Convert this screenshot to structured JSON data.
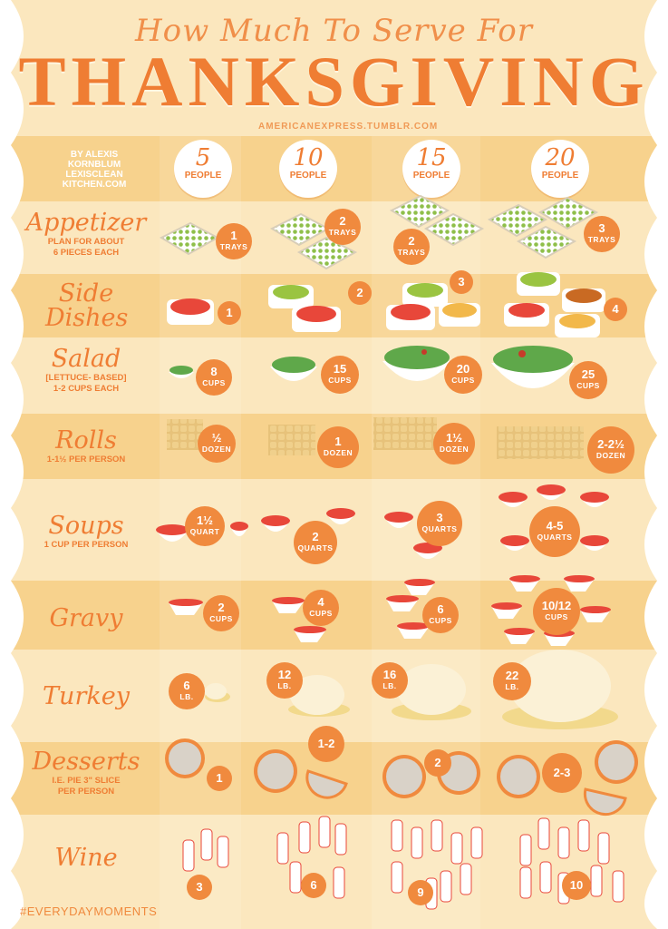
{
  "title_script": "How Much To Serve For",
  "title_main": "THANKSGIVING",
  "site": "AMERICANEXPRESS.TUMBLR.COM",
  "byline": [
    "BY ALEXIS",
    "KORNBLUM",
    "LEXISCLEAN",
    "KITCHEN.COM"
  ],
  "columns": [
    {
      "num": "5",
      "label": "PEOPLE"
    },
    {
      "num": "10",
      "label": "PEOPLE"
    },
    {
      "num": "15",
      "label": "PEOPLE"
    },
    {
      "num": "20",
      "label": "PEOPLE"
    }
  ],
  "rows": [
    {
      "name": "Appetizer",
      "note": [
        "PLAN FOR ABOUT",
        "6 PIECES EACH"
      ],
      "amounts": [
        {
          "q": "1",
          "u": "TRAYS"
        },
        {
          "q": "2",
          "u": "TRAYS"
        },
        {
          "q": "2",
          "u": "TRAYS"
        },
        {
          "q": "3",
          "u": "TRAYS"
        }
      ]
    },
    {
      "name": "Side Dishes",
      "note": [],
      "amounts": [
        {
          "q": "1",
          "u": ""
        },
        {
          "q": "2",
          "u": ""
        },
        {
          "q": "3",
          "u": ""
        },
        {
          "q": "4",
          "u": ""
        }
      ]
    },
    {
      "name": "Salad",
      "note": [
        "[LETTUCE- BASED]",
        "1-2 CUPS EACH"
      ],
      "amounts": [
        {
          "q": "8",
          "u": "CUPS"
        },
        {
          "q": "15",
          "u": "CUPS"
        },
        {
          "q": "20",
          "u": "CUPS"
        },
        {
          "q": "25",
          "u": "CUPS"
        }
      ]
    },
    {
      "name": "Rolls",
      "note": [
        "1-1½ PER PERSON"
      ],
      "amounts": [
        {
          "q": "½",
          "u": "DOZEN"
        },
        {
          "q": "1",
          "u": "DOZEN"
        },
        {
          "q": "1½",
          "u": "DOZEN"
        },
        {
          "q": "2-2½",
          "u": "DOZEN"
        }
      ]
    },
    {
      "name": "Soups",
      "note": [
        "1 CUP PER PERSON"
      ],
      "amounts": [
        {
          "q": "1½",
          "u": "QUART"
        },
        {
          "q": "2",
          "u": "QUARTS"
        },
        {
          "q": "3",
          "u": "QUARTS"
        },
        {
          "q": "4-5",
          "u": "QUARTS"
        }
      ]
    },
    {
      "name": "Gravy",
      "note": [],
      "amounts": [
        {
          "q": "2",
          "u": "CUPS"
        },
        {
          "q": "4",
          "u": "CUPS"
        },
        {
          "q": "6",
          "u": "CUPS"
        },
        {
          "q": "10/12",
          "u": "CUPS"
        }
      ]
    },
    {
      "name": "Turkey",
      "note": [],
      "amounts": [
        {
          "q": "6",
          "u": "LB."
        },
        {
          "q": "12",
          "u": "LB."
        },
        {
          "q": "16",
          "u": "LB."
        },
        {
          "q": "22",
          "u": "LB."
        }
      ]
    },
    {
      "name": "Desserts",
      "note": [
        "I.E. PIE 3\" SLICE",
        "PER PERSON"
      ],
      "amounts": [
        {
          "q": "1",
          "u": ""
        },
        {
          "q": "1-2",
          "u": ""
        },
        {
          "q": "2",
          "u": ""
        },
        {
          "q": "2-3",
          "u": ""
        }
      ]
    },
    {
      "name": "Wine",
      "note": [],
      "amounts": [
        {
          "q": "3",
          "u": ""
        },
        {
          "q": "6",
          "u": ""
        },
        {
          "q": "9",
          "u": ""
        },
        {
          "q": "10",
          "u": ""
        }
      ]
    }
  ],
  "hashtag": "#EVERYDAYMOMENTS",
  "colors": {
    "orange": "#ef7d33",
    "badge": "#f08a3e",
    "cream": "#fbe7be",
    "band": "#f7d28d"
  }
}
